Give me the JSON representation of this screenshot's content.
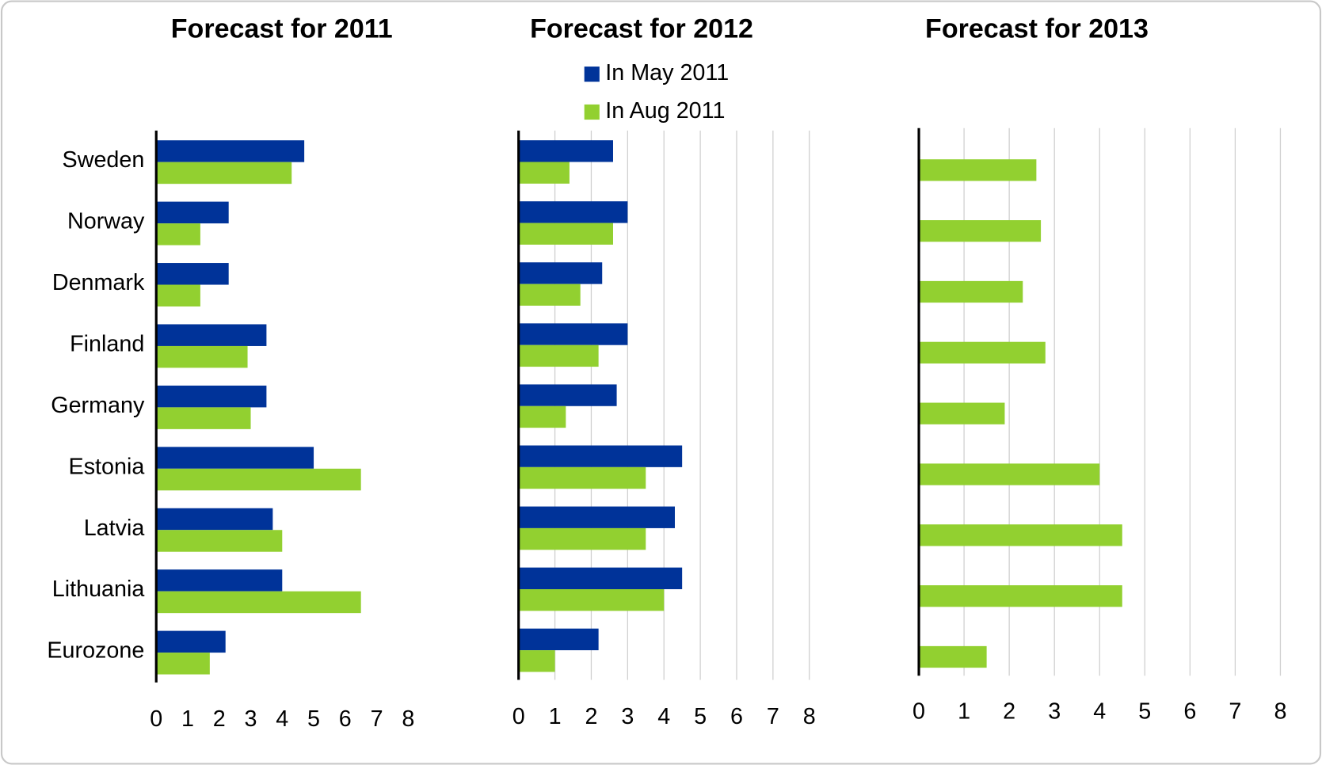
{
  "chart_data": [
    {
      "type": "bar",
      "title": "Forecast for 2011",
      "categories": [
        "Sweden",
        "Norway",
        "Denmark",
        "Finland",
        "Germany",
        "Estonia",
        "Latvia",
        "Lithuania",
        "Eurozone"
      ],
      "series": [
        {
          "color": "#003399",
          "values": [
            4.7,
            2.3,
            2.3,
            3.5,
            3.5,
            5.0,
            3.7,
            4.0,
            2.2
          ]
        },
        {
          "color": "#92d030",
          "values": [
            4.3,
            1.4,
            1.4,
            2.9,
            3.0,
            6.5,
            4.0,
            6.5,
            1.7
          ]
        }
      ],
      "xlim": [
        0,
        8
      ],
      "xticks": [
        0,
        1,
        2,
        3,
        4,
        5,
        6,
        7,
        8
      ],
      "grid": false
    },
    {
      "type": "bar",
      "title": "Forecast for 2012",
      "series": [
        {
          "name": "In May 2011",
          "color": "#003399",
          "values": [
            2.6,
            3.0,
            2.3,
            3.0,
            2.7,
            4.5,
            4.3,
            4.5,
            2.2
          ]
        },
        {
          "name": "In Aug 2011",
          "color": "#92d030",
          "values": [
            1.4,
            2.6,
            1.7,
            2.2,
            1.3,
            3.5,
            3.5,
            4.0,
            1.0
          ]
        }
      ],
      "xlim": [
        0,
        8
      ],
      "xticks": [
        0,
        1,
        2,
        3,
        4,
        5,
        6,
        7,
        8
      ],
      "grid": true,
      "legend": "top"
    },
    {
      "type": "bar",
      "title": "Forecast for 2013",
      "series": [
        {
          "color": "#92d030",
          "values": [
            2.6,
            2.7,
            2.3,
            2.8,
            1.9,
            4.0,
            4.5,
            4.5,
            1.5
          ]
        }
      ],
      "xlim": [
        0,
        8
      ],
      "xticks": [
        0,
        1,
        2,
        3,
        4,
        5,
        6,
        7,
        8
      ],
      "grid": true
    }
  ]
}
